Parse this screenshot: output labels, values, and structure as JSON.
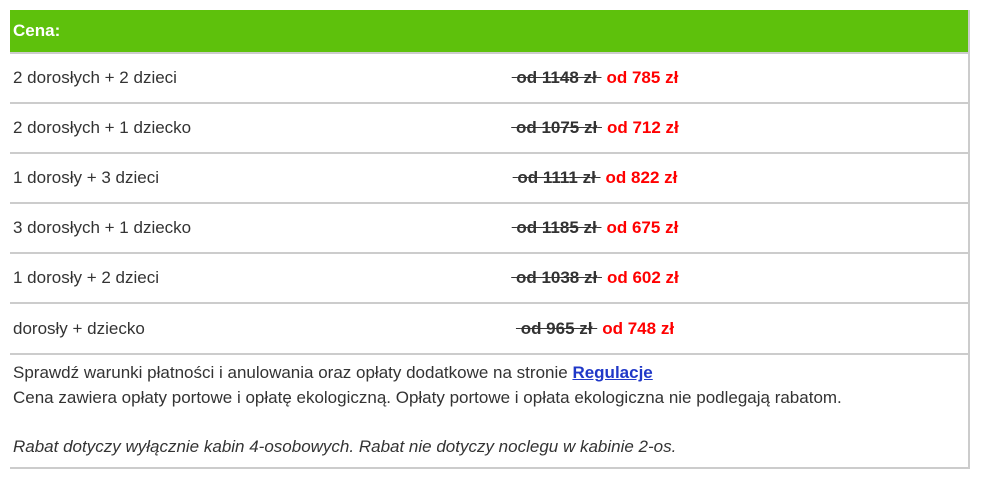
{
  "table": {
    "header": "Cena:",
    "rows": [
      {
        "label": "2 dorosłych + 2 dzieci",
        "old_price": "od 1148 zł",
        "new_price": "od 785 zł"
      },
      {
        "label": "2 dorosłych + 1 dziecko",
        "old_price": "od 1075 zł",
        "new_price": "od 712 zł"
      },
      {
        "label": "1 dorosły + 3 dzieci",
        "old_price": "od 1111 zł",
        "new_price": "od 822 zł"
      },
      {
        "label": "3 dorosłych + 1 dziecko",
        "old_price": "od 1185 zł",
        "new_price": "od 675 zł"
      },
      {
        "label": "1 dorosły + 2 dzieci",
        "old_price": "od 1038 zł",
        "new_price": "od 602 zł"
      },
      {
        "label": "dorosły + dziecko",
        "old_price": "od 965 zł",
        "new_price": "od 748 zł"
      }
    ]
  },
  "footer": {
    "line1_prefix": "Sprawdź warunki płatności i anulowania oraz opłaty dodatkowe na stronie ",
    "link_label": "Regulacje",
    "line2": "Cena zawiera opłaty portowe i opłatę ekologiczną. Opłaty portowe i opłata ekologiczna nie podlegają rabatom.",
    "note": "Rabat dotyczy wyłącznie kabin 4-osobowych. Rabat nie dotyczy noclegu w kabinie 2-os."
  },
  "colors": {
    "header_bg": "#5ec10c",
    "header_text": "#ffffff",
    "old_price_text": "#333333",
    "new_price_text": "#ff0000",
    "link_text": "#2038c8",
    "border": "#cccccc",
    "body_text": "#333333"
  }
}
